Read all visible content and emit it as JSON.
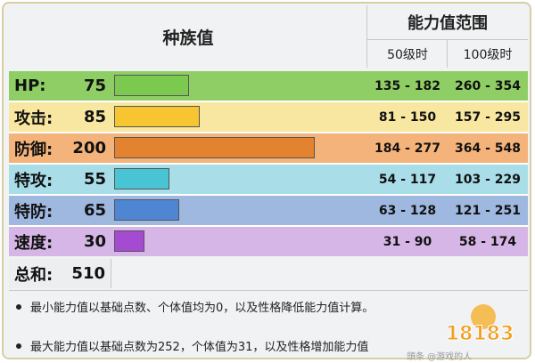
{
  "header": {
    "base_stats": "种族值",
    "stat_range": "能力值范围",
    "lv50": "50级时",
    "lv100": "100级时"
  },
  "stats": [
    {
      "name": "HP:",
      "value": "75",
      "range50": "135 - 182",
      "range100": "260 - 354",
      "bar_fill": 0.375,
      "row_color": "#8fcd65",
      "bar_color": "#7bc94f"
    },
    {
      "name": "攻击:",
      "value": "85",
      "range50": "81 - 150",
      "range100": "157 - 295",
      "bar_fill": 0.425,
      "row_color": "#f8e7a0",
      "bar_color": "#f6c52f"
    },
    {
      "name": "防御:",
      "value": "200",
      "range50": "184 - 277",
      "range100": "364 - 548",
      "bar_fill": 1.0,
      "row_color": "#f4b37a",
      "bar_color": "#e3822f"
    },
    {
      "name": "特攻:",
      "value": "55",
      "range50": "54 - 117",
      "range100": "103 - 229",
      "bar_fill": 0.275,
      "row_color": "#a9dde8",
      "bar_color": "#49c4d4"
    },
    {
      "name": "特防:",
      "value": "65",
      "range50": "63 - 128",
      "range100": "121 - 251",
      "bar_fill": 0.325,
      "row_color": "#9eb8e0",
      "bar_color": "#4e86d4"
    },
    {
      "name": "速度:",
      "value": "30",
      "range50": "31 - 90",
      "range100": "58 - 174",
      "bar_fill": 0.15,
      "row_color": "#d6b6e6",
      "bar_color": "#a44bd2"
    }
  ],
  "total": {
    "name": "总和:",
    "value": "510"
  },
  "notes": [
    "最小能力值以基础点数、个体值均为0，以及性格降低能力值计算。",
    "最大能力值以基础点数为252，个体值为31，以及性格增加能力值"
  ],
  "watermark": {
    "logo": "18183",
    "caption": "頭条 @游戏的人"
  }
}
